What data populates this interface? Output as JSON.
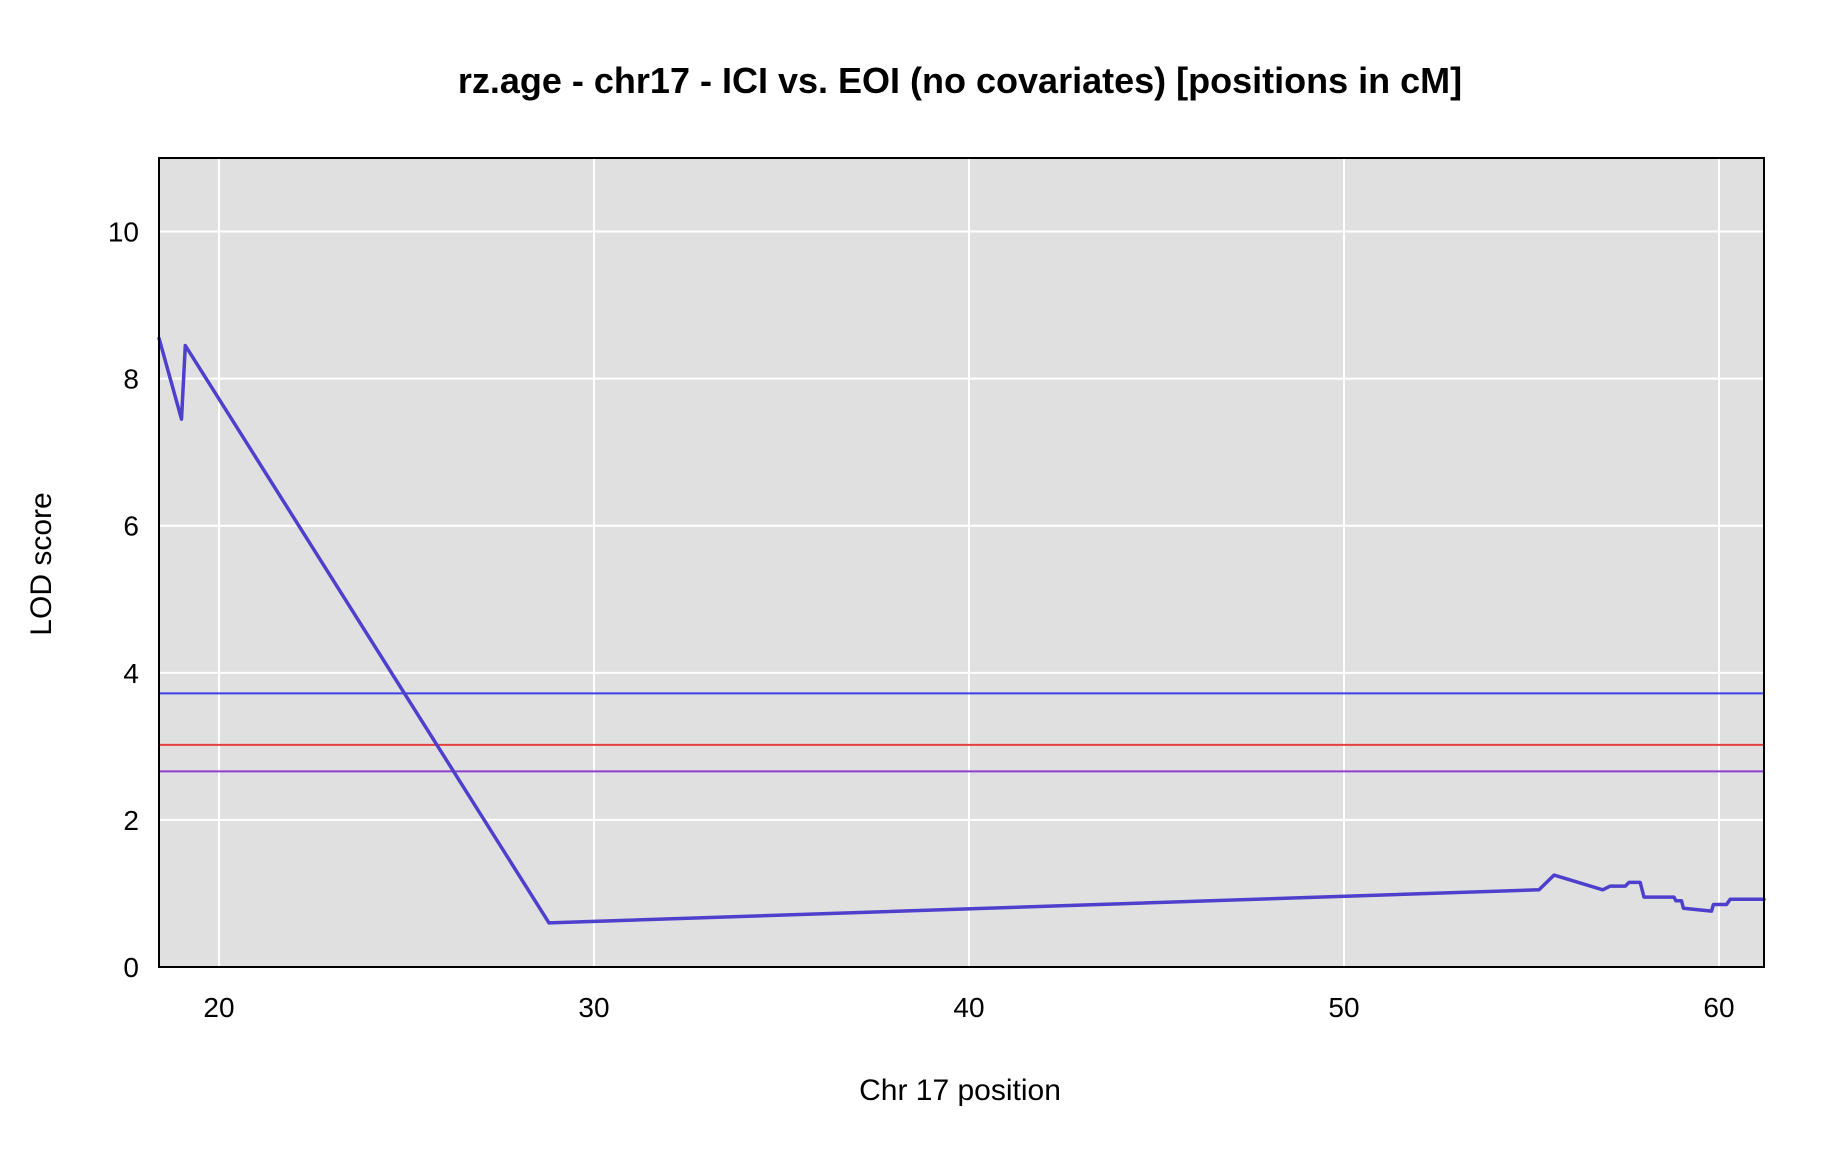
{
  "chart_data": {
    "type": "line",
    "title": "rz.age - chr17 - ICI vs. EOI (no covariates) [positions in cM]",
    "xlabel": "Chr 17 position",
    "ylabel": "LOD score",
    "xlim": [
      18.4,
      61.2
    ],
    "ylim": [
      0,
      11
    ],
    "xticks": [
      20,
      30,
      40,
      50,
      60
    ],
    "yticks": [
      0,
      2,
      4,
      6,
      8,
      10
    ],
    "grid": true,
    "legend": "none",
    "series": [
      {
        "color": "#4e3fcc",
        "x": [
          18.4,
          19.0,
          19.1,
          28.8,
          55.2,
          55.6,
          56.9,
          57.1,
          57.3,
          57.5,
          57.6,
          57.9,
          58.0,
          58.8,
          58.85,
          59.0,
          59.05,
          59.8,
          59.85,
          60.2,
          60.3,
          61.2
        ],
        "y": [
          8.55,
          7.45,
          8.45,
          0.6,
          1.05,
          1.25,
          1.05,
          1.1,
          1.1,
          1.1,
          1.15,
          1.15,
          0.95,
          0.95,
          0.9,
          0.9,
          0.8,
          0.76,
          0.85,
          0.85,
          0.92,
          0.92
        ]
      }
    ],
    "thresholds": [
      {
        "y": 3.72,
        "color": "#3f3fe6"
      },
      {
        "y": 3.02,
        "color": "#e63f3f"
      },
      {
        "y": 2.66,
        "color": "#8b3fcf"
      }
    ],
    "colors": {
      "plot_background": "#e0e0e0",
      "grid": "#ffffff",
      "frame": "#000000"
    }
  }
}
